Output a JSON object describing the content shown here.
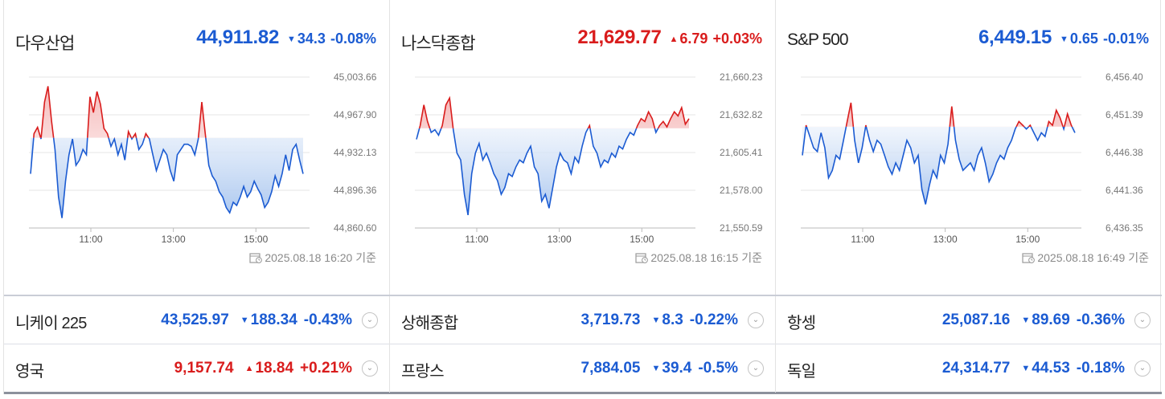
{
  "panels": [
    {
      "name": "다우산업",
      "price": "44,911.82",
      "direction": "down",
      "change": "34.3",
      "pct": "-0.08%",
      "timestamp": "2025.08.18 16:20 기준",
      "chart_data": {
        "type": "area",
        "baseline": 44946.12,
        "ylim": [
          44860.6,
          45003.66
        ],
        "yticks": [
          "45,003.66",
          "44,967.90",
          "44,932.13",
          "44,896.36",
          "44,860.60"
        ],
        "xticks": [
          "11:00",
          "13:00",
          "15:00"
        ],
        "xtick_positions": [
          1.5,
          3.5,
          5.5
        ],
        "xmax": 6.8,
        "values": [
          44912,
          44950,
          44956,
          44945,
          44980,
          44995,
          44962,
          44935,
          44890,
          44870,
          44905,
          44930,
          44945,
          44920,
          44925,
          44935,
          44930,
          44985,
          44970,
          44990,
          44978,
          44955,
          44950,
          44938,
          44945,
          44930,
          44940,
          44925,
          44952,
          44945,
          44950,
          44935,
          44940,
          44950,
          44945,
          44930,
          44915,
          44925,
          44935,
          44930,
          44915,
          44905,
          44930,
          44935,
          44940,
          44940,
          44938,
          44930,
          44945,
          44980,
          44950,
          44920,
          44910,
          44905,
          44895,
          44890,
          44880,
          44875,
          44885,
          44882,
          44890,
          44900,
          44890,
          44895,
          44905,
          44898,
          44892,
          44880,
          44885,
          44895,
          44910,
          44900,
          44912,
          44930,
          44915,
          44935,
          44940,
          44925,
          44912
        ]
      }
    },
    {
      "name": "나스닥종합",
      "price": "21,629.77",
      "direction": "up",
      "change": "6.79",
      "pct": "+0.03%",
      "timestamp": "2025.08.18 16:15 기준",
      "chart_data": {
        "type": "area",
        "baseline": 21622.98,
        "ylim": [
          21550.59,
          21660.23
        ],
        "yticks": [
          "21,660.23",
          "21,632.82",
          "21,605.41",
          "21,578.00",
          "21,550.59"
        ],
        "xticks": [
          "11:00",
          "13:00",
          "15:00"
        ],
        "xtick_positions": [
          1.5,
          3.5,
          5.5
        ],
        "xmax": 6.8,
        "values": [
          21615,
          21625,
          21640,
          21628,
          21620,
          21622,
          21618,
          21625,
          21640,
          21645,
          21622,
          21605,
          21600,
          21575,
          21560,
          21590,
          21605,
          21612,
          21600,
          21605,
          21598,
          21590,
          21585,
          21575,
          21580,
          21590,
          21588,
          21595,
          21600,
          21598,
          21605,
          21610,
          21595,
          21590,
          21570,
          21575,
          21565,
          21580,
          21595,
          21605,
          21600,
          21598,
          21590,
          21602,
          21598,
          21610,
          21620,
          21625,
          21610,
          21605,
          21595,
          21600,
          21598,
          21605,
          21602,
          21610,
          21608,
          21615,
          21620,
          21618,
          21625,
          21630,
          21628,
          21635,
          21630,
          21620,
          21625,
          21628,
          21624,
          21630,
          21635,
          21632,
          21638,
          21626,
          21630
        ]
      }
    },
    {
      "name": "S&P 500",
      "price": "6,449.15",
      "direction": "down",
      "change": "0.65",
      "pct": "-0.01%",
      "timestamp": "2025.08.18 16:49 기준",
      "chart_data": {
        "type": "area",
        "baseline": 6449.8,
        "ylim": [
          6436.35,
          6456.4
        ],
        "yticks": [
          "6,456.40",
          "6,451.39",
          "6,446.38",
          "6,441.36",
          "6,436.35"
        ],
        "xticks": [
          "11:00",
          "13:00",
          "15:00"
        ],
        "xtick_positions": [
          1.5,
          3.5,
          5.5
        ],
        "xmax": 6.8,
        "values": [
          6446.0,
          6450.0,
          6448.5,
          6447.0,
          6446.5,
          6449.0,
          6447.0,
          6443.0,
          6444.0,
          6446.0,
          6445.5,
          6448.0,
          6450.5,
          6453.0,
          6448.0,
          6445.0,
          6447.0,
          6450.0,
          6448.0,
          6446.5,
          6448.0,
          6447.5,
          6446.0,
          6444.5,
          6443.5,
          6445.0,
          6444.0,
          6446.0,
          6448.0,
          6447.0,
          6445.0,
          6446.0,
          6441.5,
          6439.5,
          6442.0,
          6444.0,
          6443.0,
          6446.0,
          6445.0,
          6447.5,
          6452.5,
          6448.0,
          6445.5,
          6444.0,
          6444.5,
          6445.0,
          6444.0,
          6446.0,
          6447.0,
          6445.0,
          6442.5,
          6443.5,
          6445.0,
          6446.0,
          6445.5,
          6447.0,
          6448.0,
          6449.5,
          6450.5,
          6450.0,
          6449.5,
          6450.0,
          6449.0,
          6448.0,
          6449.0,
          6448.5,
          6450.5,
          6450.0,
          6452.0,
          6451.0,
          6449.5,
          6451.5,
          6450.0,
          6449.0
        ]
      }
    }
  ],
  "rows": [
    [
      {
        "name": "니케이 225",
        "price": "43,525.97",
        "direction": "down",
        "change": "188.34",
        "pct": "-0.43%"
      },
      {
        "name": "상해종합",
        "price": "3,719.73",
        "direction": "down",
        "change": "8.3",
        "pct": "-0.22%"
      },
      {
        "name": "항셍",
        "price": "25,087.16",
        "direction": "down",
        "change": "89.69",
        "pct": "-0.36%"
      }
    ],
    [
      {
        "name": "영국",
        "price": "9,157.74",
        "direction": "up",
        "change": "18.84",
        "pct": "+0.21%"
      },
      {
        "name": "프랑스",
        "price": "7,884.05",
        "direction": "down",
        "change": "39.4",
        "pct": "-0.5%"
      },
      {
        "name": "독일",
        "price": "24,314.77",
        "direction": "down",
        "change": "44.53",
        "pct": "-0.18%"
      }
    ]
  ],
  "colors": {
    "up": "#d91c1c",
    "down": "#1b5bd2",
    "up_fill": "#f5b8b8",
    "down_fill": "#a9c6ef",
    "grid": "#e6e6e6"
  },
  "icons": {
    "arrow_up": "▲",
    "arrow_down": "▼",
    "expand": "chevron-down-icon",
    "clock": "calendar-clock-icon"
  }
}
